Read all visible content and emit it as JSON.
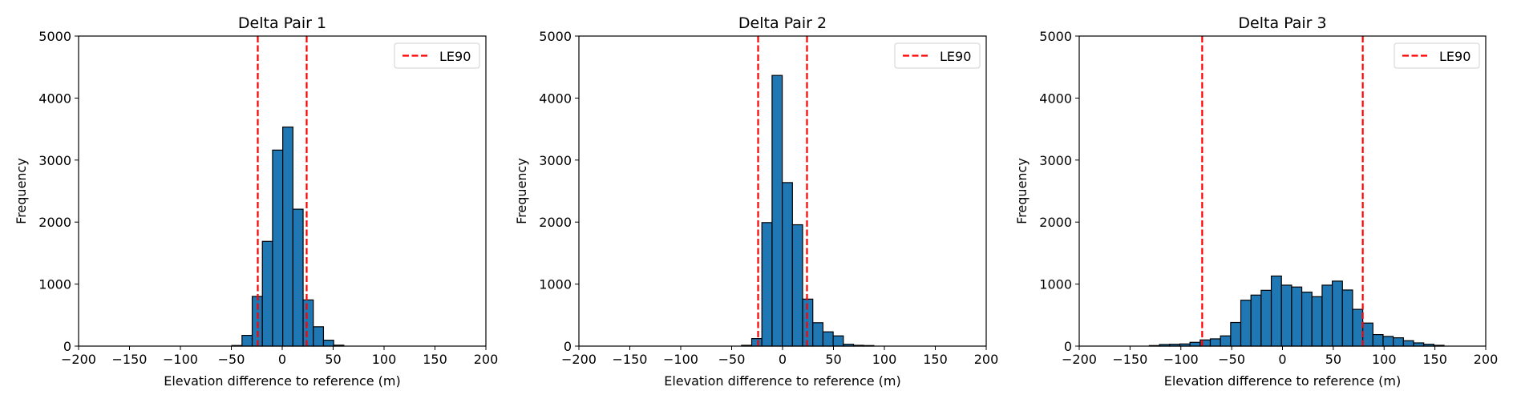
{
  "chart_data": [
    {
      "type": "bar",
      "title": "Delta Pair 1",
      "xlabel": "Elevation difference to reference (m)",
      "ylabel": "Frequency",
      "xlim": [
        -200,
        200
      ],
      "ylim": [
        0,
        5000
      ],
      "xticks": [
        "-200",
        "-150",
        "-100",
        "-50",
        "0",
        "50",
        "100",
        "150",
        "200"
      ],
      "yticks": [
        "0",
        "1000",
        "2000",
        "3000",
        "4000",
        "5000"
      ],
      "bin_start": -49.5,
      "bin_width": 10,
      "values": [
        10,
        173,
        801,
        1689,
        3161,
        3533,
        2208,
        745,
        312,
        95,
        15
      ],
      "le90": [
        -24,
        24
      ],
      "legend": "LE90",
      "legend_position": "top-right"
    },
    {
      "type": "bar",
      "title": "Delta Pair 2",
      "xlabel": "Elevation difference to reference (m)",
      "ylabel": "Frequency",
      "xlim": [
        -200,
        200
      ],
      "ylim": [
        0,
        5000
      ],
      "xticks": [
        "-200",
        "-150",
        "-100",
        "-50",
        "0",
        "50",
        "100",
        "150",
        "200"
      ],
      "yticks": [
        "0",
        "1000",
        "2000",
        "3000",
        "4000",
        "5000"
      ],
      "bin_start": -40.3,
      "bin_width": 10,
      "values": [
        13,
        121,
        1992,
        4365,
        2637,
        1957,
        758,
        377,
        230,
        165,
        30,
        13,
        9
      ],
      "le90": [
        -24,
        24
      ],
      "legend": "LE90",
      "legend_position": "top-right"
    },
    {
      "type": "bar",
      "title": "Delta Pair 3",
      "xlabel": "Elevation difference to reference (m)",
      "ylabel": "Frequency",
      "xlim": [
        -200,
        200
      ],
      "ylim": [
        0,
        5000
      ],
      "xticks": [
        "-200",
        "-150",
        "-100",
        "-50",
        "0",
        "50",
        "100",
        "150",
        "200"
      ],
      "yticks": [
        "0",
        "1000",
        "2000",
        "3000",
        "4000",
        "5000"
      ],
      "bin_start": -131,
      "bin_width": 10,
      "values": [
        9,
        26,
        30,
        35,
        61,
        100,
        117,
        165,
        381,
        740,
        823,
        900,
        1130,
        983,
        953,
        870,
        797,
        983,
        1048,
        905,
        593,
        372,
        186,
        156,
        134,
        87,
        52,
        30,
        13
      ],
      "le90": [
        -79,
        79
      ],
      "legend": "LE90",
      "legend_position": "top-right"
    }
  ],
  "colors": {
    "bar": "#1f77b4",
    "edge": "#000000",
    "le90": "#ff0000"
  }
}
